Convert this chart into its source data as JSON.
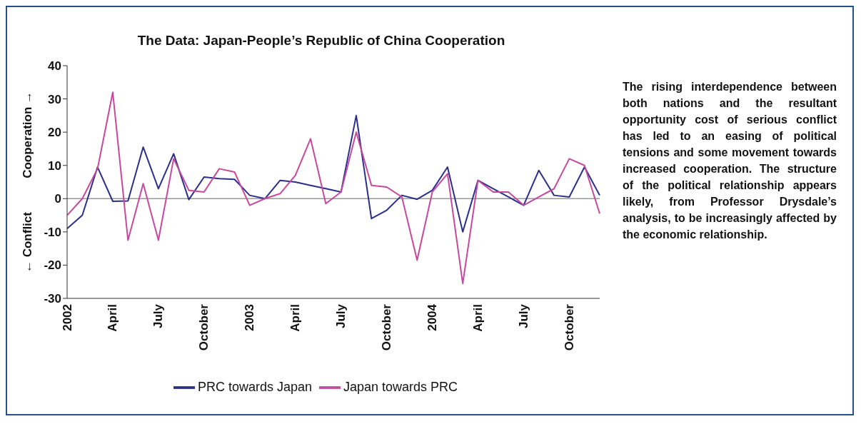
{
  "chart_data": {
    "type": "line",
    "title": "The Data: Japan-People’s Republic of China Cooperation",
    "ylabel": "← Conflict          Cooperation →",
    "annotations": [
      "The rising interdependence between both nations and the resultant opportunity cost of serious conflict has led to an easing of political tensions and some movement towards increased cooperation. The structure of the political relationship appears likely, from Professor Drysdale’s analysis, to be increasingly affected by the economic relationship."
    ],
    "categories": [
      "2002",
      null,
      null,
      "April",
      null,
      null,
      "July",
      null,
      null,
      "October",
      null,
      null,
      "2003",
      null,
      null,
      "April",
      null,
      null,
      "July",
      null,
      null,
      "October",
      null,
      null,
      "2004",
      null,
      null,
      "April",
      null,
      null,
      "July",
      null,
      null,
      "October",
      null,
      null
    ],
    "series": [
      {
        "name": "PRC towards Japan",
        "color": "#2b2f8c",
        "values": [
          -9,
          -5,
          9.5,
          -0.8,
          -0.7,
          15.5,
          3,
          13.5,
          -0.3,
          6.5,
          6,
          5.8,
          1,
          0,
          5.5,
          5,
          4,
          3,
          2,
          25,
          -6,
          -3.5,
          1,
          -0.2,
          2.5,
          9.5,
          -10,
          5.5,
          3,
          0.5,
          -2,
          8.5,
          1,
          0.5,
          9.5,
          1
        ]
      },
      {
        "name": "Japan towards PRC",
        "color": "#c8489e",
        "values": [
          -5,
          0,
          9,
          32,
          -12.5,
          4.5,
          -12.5,
          12,
          2.5,
          2,
          9,
          8,
          -2,
          0,
          1.5,
          7,
          18,
          -1.5,
          2,
          20,
          4,
          3.5,
          0.5,
          -18.5,
          2,
          7.5,
          -25.5,
          5.5,
          2,
          2,
          -2,
          0.5,
          3,
          12,
          10,
          -4.5
        ]
      }
    ],
    "ylim": [
      -30,
      40
    ],
    "yticks": [
      -30,
      -20,
      -10,
      0,
      10,
      20,
      30,
      40
    ],
    "ref_lines": [
      {
        "axis": "y",
        "value": 0,
        "color": "#999999"
      }
    ],
    "grid": false,
    "legend": "bottom",
    "marker": "none",
    "line_style": "solid"
  }
}
